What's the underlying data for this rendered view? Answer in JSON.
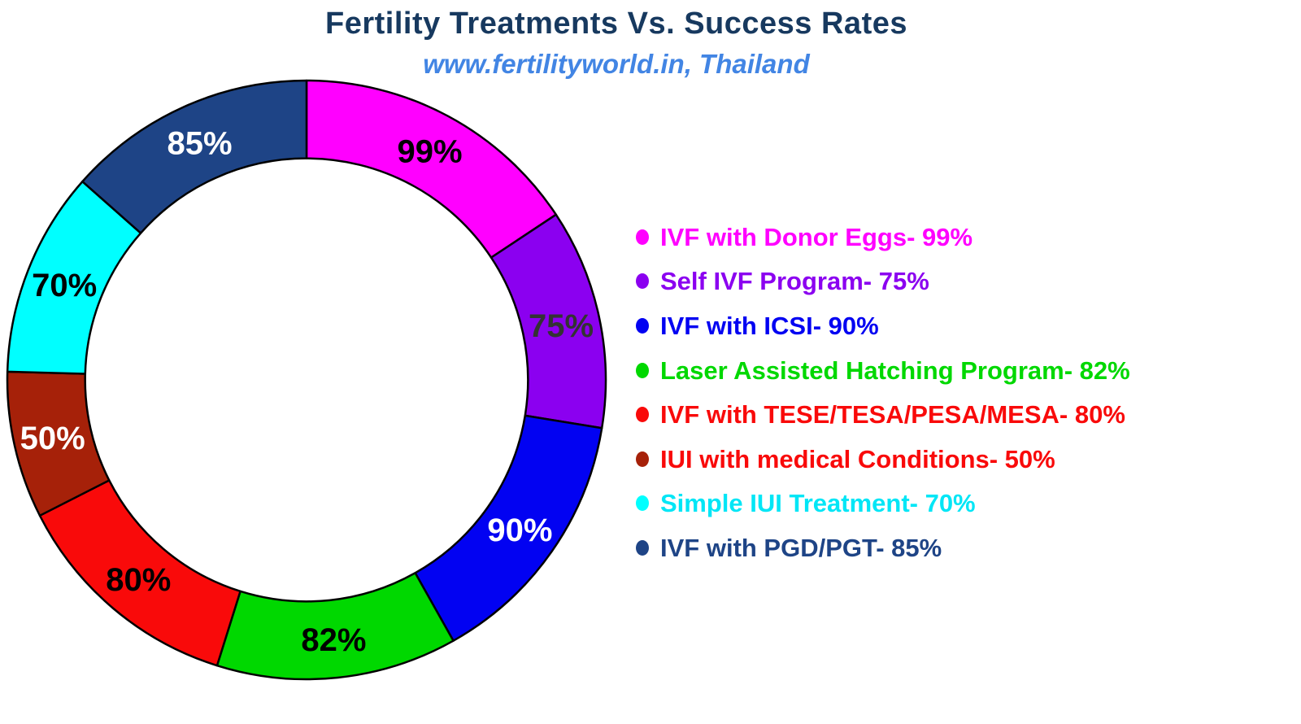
{
  "header": {
    "title": "Fertility Treatments Vs. Success Rates",
    "subtitle": "www.fertilityworld.in, Thailand",
    "title_color": "#17395F",
    "subtitle_color": "#4285E4"
  },
  "chart_data": {
    "type": "pie",
    "subtype": "donut",
    "title": "Fertility Treatments Vs. Success Rates",
    "subtitle": "www.fertilityworld.in, Thailand",
    "unit": "%",
    "start_at": "top",
    "direction": "clockwise",
    "donut_hole_ratio": 0.74,
    "legend_position": "right",
    "slice_border_color": "#000000",
    "segments": [
      {
        "name": "IVF with Donor Eggs",
        "value": 99,
        "slice_label": "99%",
        "color": "#FF00FF",
        "label_color": "#000000",
        "legend_label": "IVF with Donor Eggs- 99%",
        "legend_text_color": "#FF00FF",
        "bullet_color": "#FF00FF"
      },
      {
        "name": "Self IVF Program",
        "value": 75,
        "slice_label": "75%",
        "color": "#8B00F0",
        "label_color": "#333333",
        "legend_label": "Self IVF Program- 75%",
        "legend_text_color": "#8B00F0",
        "bullet_color": "#8B00F0"
      },
      {
        "name": "IVF with ICSI",
        "value": 90,
        "slice_label": "90%",
        "color": "#0202F2",
        "label_color": "#FFFFFF",
        "legend_label": "IVF with ICSI- 90%",
        "legend_text_color": "#0202F2",
        "bullet_color": "#0202F2"
      },
      {
        "name": "Laser Assisted Hatching Program",
        "value": 82,
        "slice_label": "82%",
        "color": "#00D800",
        "label_color": "#000000",
        "legend_label": "Laser Assisted Hatching Program- 82%",
        "legend_text_color": "#00D800",
        "bullet_color": "#00D800"
      },
      {
        "name": "IVF with TESE/TESA/PESA/MESA",
        "value": 80,
        "slice_label": "80%",
        "color": "#F90A0A",
        "label_color": "#000000",
        "legend_label": "IVF with TESE/TESA/PESA/MESA- 80%",
        "legend_text_color": "#F90A0A",
        "bullet_color": "#F90A0A"
      },
      {
        "name": "IUI with medical Conditions",
        "value": 50,
        "slice_label": "50%",
        "color": "#A62109",
        "label_color": "#FFFFFF",
        "legend_label": "IUI with medical Conditions- 50%",
        "legend_text_color": "#F90A0A",
        "bullet_color": "#A62109"
      },
      {
        "name": "Simple IUI Treatment",
        "value": 70,
        "slice_label": "70%",
        "color": "#00FFFF",
        "label_color": "#000000",
        "legend_label": "Simple IUI Treatment- 70%",
        "legend_text_color": "#00E6F6",
        "bullet_color": "#00FFFF"
      },
      {
        "name": "IVF with PGD/PGT",
        "value": 85,
        "slice_label": "85%",
        "color": "#1E4486",
        "label_color": "#FFFFFF",
        "legend_label": "IVF with PGD/PGT- 85%",
        "legend_text_color": "#1E4486",
        "bullet_color": "#1E4486"
      }
    ]
  }
}
